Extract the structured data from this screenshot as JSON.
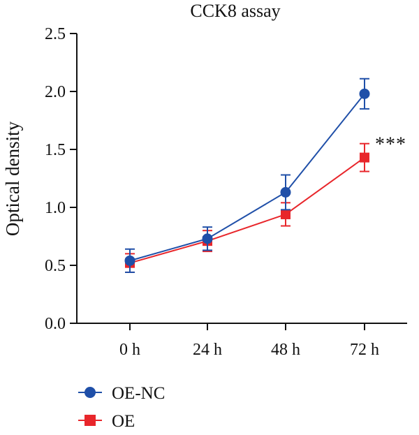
{
  "chart_data": {
    "type": "line",
    "title": "CCK8 assay",
    "xlabel": "",
    "ylabel": "Optical density",
    "categories": [
      "0 h",
      "24 h",
      "48 h",
      "72 h"
    ],
    "ylim": [
      0.0,
      2.5
    ],
    "yticks": [
      "0.0",
      "0.5",
      "1.0",
      "1.5",
      "2.0",
      "2.5"
    ],
    "grid": false,
    "legend_position": "bottom-left",
    "series": [
      {
        "name": "OE-NC",
        "marker": "circle",
        "color": "#1f4fa8",
        "values": [
          0.54,
          0.73,
          1.13,
          1.98
        ],
        "errors": [
          0.1,
          0.1,
          0.15,
          0.13
        ]
      },
      {
        "name": "OE",
        "marker": "square",
        "color": "#e8262b",
        "values": [
          0.52,
          0.71,
          0.94,
          1.43
        ],
        "errors": [
          0.08,
          0.09,
          0.1,
          0.12
        ]
      }
    ],
    "annotations": [
      {
        "text": "***",
        "category": "72 h"
      }
    ]
  }
}
